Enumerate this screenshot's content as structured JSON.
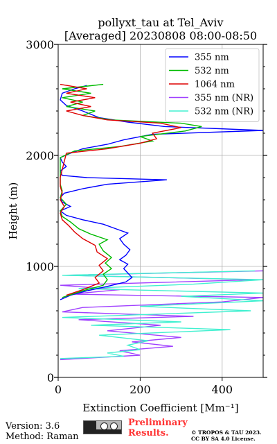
{
  "chart_data": {
    "type": "line",
    "title": "pollyxt_tau at Tel_Aviv",
    "subtitle": "[Averaged] 20230808 08:00-08:50",
    "xlabel": "Extinction Coefficient [Mm⁻¹]",
    "ylabel": "Height (m)",
    "xlim": [
      0,
      500
    ],
    "ylim": [
      0,
      3000
    ],
    "xticks": [
      0,
      200,
      400
    ],
    "yticks": [
      0,
      1000,
      2000,
      3000
    ],
    "grid": true,
    "legend_position": "top-right",
    "series": [
      {
        "name": "355 nm",
        "color": "#0000ff",
        "points": [
          [
            5,
            700
          ],
          [
            30,
            740
          ],
          [
            70,
            780
          ],
          [
            120,
            820
          ],
          [
            165,
            860
          ],
          [
            180,
            900
          ],
          [
            170,
            940
          ],
          [
            160,
            980
          ],
          [
            170,
            1020
          ],
          [
            150,
            1060
          ],
          [
            165,
            1100
          ],
          [
            175,
            1150
          ],
          [
            160,
            1200
          ],
          [
            150,
            1250
          ],
          [
            170,
            1300
          ],
          [
            140,
            1340
          ],
          [
            110,
            1380
          ],
          [
            60,
            1420
          ],
          [
            20,
            1460
          ],
          [
            5,
            1500
          ],
          [
            30,
            1540
          ],
          [
            10,
            1580
          ],
          [
            5,
            1620
          ],
          [
            15,
            1660
          ],
          [
            60,
            1700
          ],
          [
            120,
            1740
          ],
          [
            265,
            1780
          ],
          [
            70,
            1800
          ],
          [
            10,
            1820
          ],
          [
            5,
            1860
          ],
          [
            20,
            1900
          ],
          [
            10,
            1940
          ],
          [
            5,
            1980
          ],
          [
            30,
            2020
          ],
          [
            60,
            2060
          ],
          [
            120,
            2100
          ],
          [
            160,
            2140
          ],
          [
            230,
            2190
          ],
          [
            500,
            2225
          ],
          [
            260,
            2260
          ],
          [
            170,
            2300
          ],
          [
            100,
            2340
          ],
          [
            60,
            2400
          ],
          [
            20,
            2450
          ],
          [
            5,
            2500
          ],
          [
            10,
            2560
          ],
          [
            40,
            2600
          ],
          [
            70,
            2630
          ]
        ]
      },
      {
        "name": "532 nm",
        "color": "#00bb00",
        "points": [
          [
            10,
            720
          ],
          [
            60,
            780
          ],
          [
            110,
            830
          ],
          [
            120,
            880
          ],
          [
            110,
            930
          ],
          [
            130,
            980
          ],
          [
            115,
            1030
          ],
          [
            130,
            1080
          ],
          [
            110,
            1140
          ],
          [
            100,
            1200
          ],
          [
            120,
            1240
          ],
          [
            80,
            1290
          ],
          [
            50,
            1340
          ],
          [
            30,
            1400
          ],
          [
            10,
            1450
          ],
          [
            5,
            1500
          ],
          [
            20,
            1560
          ],
          [
            5,
            1620
          ],
          [
            10,
            1680
          ],
          [
            5,
            1740
          ],
          [
            5,
            1860
          ],
          [
            5,
            1980
          ],
          [
            40,
            2040
          ],
          [
            150,
            2080
          ],
          [
            230,
            2130
          ],
          [
            200,
            2170
          ],
          [
            310,
            2220
          ],
          [
            350,
            2260
          ],
          [
            300,
            2290
          ],
          [
            130,
            2320
          ],
          [
            60,
            2360
          ],
          [
            90,
            2400
          ],
          [
            20,
            2440
          ],
          [
            60,
            2480
          ],
          [
            10,
            2520
          ],
          [
            80,
            2560
          ],
          [
            10,
            2600
          ],
          [
            110,
            2640
          ]
        ]
      },
      {
        "name": "1064 nm",
        "color": "#dd0000",
        "points": [
          [
            20,
            740
          ],
          [
            60,
            790
          ],
          [
            100,
            850
          ],
          [
            90,
            900
          ],
          [
            110,
            960
          ],
          [
            100,
            1010
          ],
          [
            120,
            1070
          ],
          [
            95,
            1130
          ],
          [
            90,
            1190
          ],
          [
            60,
            1250
          ],
          [
            40,
            1310
          ],
          [
            25,
            1370
          ],
          [
            10,
            1420
          ],
          [
            5,
            1480
          ],
          [
            15,
            1540
          ],
          [
            5,
            1600
          ],
          [
            10,
            1660
          ],
          [
            5,
            1720
          ],
          [
            5,
            1800
          ],
          [
            20,
            2020
          ],
          [
            120,
            2060
          ],
          [
            200,
            2110
          ],
          [
            240,
            2150
          ],
          [
            230,
            2200
          ],
          [
            300,
            2250
          ],
          [
            250,
            2290
          ],
          [
            120,
            2320
          ],
          [
            60,
            2360
          ],
          [
            20,
            2400
          ],
          [
            80,
            2440
          ],
          [
            30,
            2480
          ],
          [
            90,
            2520
          ],
          [
            20,
            2560
          ],
          [
            70,
            2600
          ],
          [
            5,
            2640
          ]
        ]
      },
      {
        "name": "355 nm (NR)",
        "color": "#a040ff",
        "points": [
          [
            5,
            160
          ],
          [
            200,
            200
          ],
          [
            150,
            240
          ],
          [
            280,
            280
          ],
          [
            180,
            320
          ],
          [
            300,
            360
          ],
          [
            120,
            420
          ],
          [
            250,
            470
          ],
          [
            50,
            520
          ],
          [
            330,
            550
          ],
          [
            10,
            590
          ],
          [
            60,
            630
          ],
          [
            400,
            680
          ],
          [
            500,
            720
          ],
          [
            30,
            750
          ],
          [
            150,
            790
          ],
          [
            5,
            830
          ],
          [
            480,
            880
          ],
          [
            20,
            920
          ],
          [
            500,
            960
          ]
        ]
      },
      {
        "name": "532 nm (NR)",
        "color": "#40f0d0",
        "points": [
          [
            5,
            170
          ],
          [
            160,
            190
          ],
          [
            120,
            220
          ],
          [
            200,
            250
          ],
          [
            170,
            290
          ],
          [
            220,
            330
          ],
          [
            100,
            380
          ],
          [
            420,
            430
          ],
          [
            80,
            470
          ],
          [
            300,
            500
          ],
          [
            10,
            540
          ],
          [
            470,
            600
          ],
          [
            200,
            640
          ],
          [
            500,
            690
          ],
          [
            300,
            730
          ],
          [
            500,
            760
          ],
          [
            50,
            800
          ],
          [
            330,
            840
          ],
          [
            500,
            880
          ],
          [
            10,
            920
          ],
          [
            480,
            960
          ]
        ]
      }
    ]
  },
  "footer": {
    "version": "Version: 3.6",
    "method": "Method: Raman",
    "preliminary": [
      "Preliminary",
      "Results."
    ],
    "copyright": [
      "© TROPOS & TAU 2023.",
      "CC BY SA 4.0 License."
    ]
  }
}
